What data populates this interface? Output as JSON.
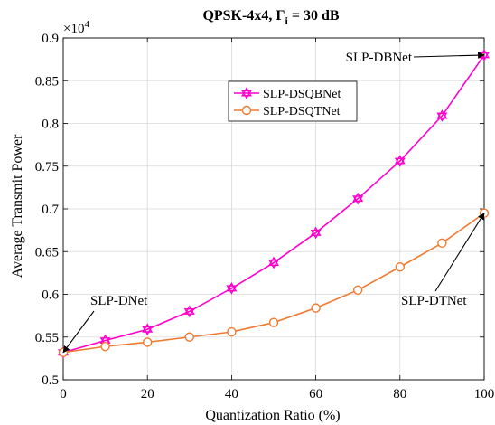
{
  "chart_data": {
    "type": "line",
    "title": {
      "prefix": "QPSK-4x4, Γ",
      "subscript": "i",
      "suffix": " = 30 dB"
    },
    "xlabel": "Quantization Ratio (%)",
    "ylabel": "Average Transmit Power",
    "y_multiplier_label": {
      "base": "×10",
      "exponent": "4"
    },
    "xlim": [
      0,
      100
    ],
    "ylim": [
      0.5,
      0.9
    ],
    "x_ticks": [
      0,
      20,
      40,
      60,
      80,
      100
    ],
    "y_ticks": [
      0.5,
      0.55,
      0.6,
      0.65,
      0.7,
      0.75,
      0.8,
      0.85,
      0.9
    ],
    "y_tick_labels": [
      "0.5",
      "0.55",
      "0.6",
      "0.65",
      "0.7",
      "0.75",
      "0.8",
      "0.85",
      "0.9"
    ],
    "grid": true,
    "legend_position": "top-center",
    "x": [
      0,
      10,
      20,
      30,
      40,
      50,
      60,
      70,
      80,
      90,
      100
    ],
    "series": [
      {
        "name": "SLP-DSQBNet",
        "color": "#ff00cc",
        "marker": "hexagram",
        "values": [
          0.532,
          0.546,
          0.559,
          0.58,
          0.607,
          0.637,
          0.672,
          0.712,
          0.756,
          0.809,
          0.88
        ]
      },
      {
        "name": "SLP-DSQTNet",
        "color": "#f07a30",
        "marker": "circle",
        "values": [
          0.532,
          0.539,
          0.544,
          0.55,
          0.556,
          0.567,
          0.584,
          0.605,
          0.632,
          0.66,
          0.695
        ]
      }
    ],
    "annotations": [
      {
        "text": "SLP-DBNet",
        "point": [
          100,
          0.88
        ]
      },
      {
        "text": "SLP-DNet",
        "point": [
          0,
          0.532
        ]
      },
      {
        "text": "SLP-DTNet",
        "point": [
          100,
          0.695
        ]
      }
    ]
  }
}
